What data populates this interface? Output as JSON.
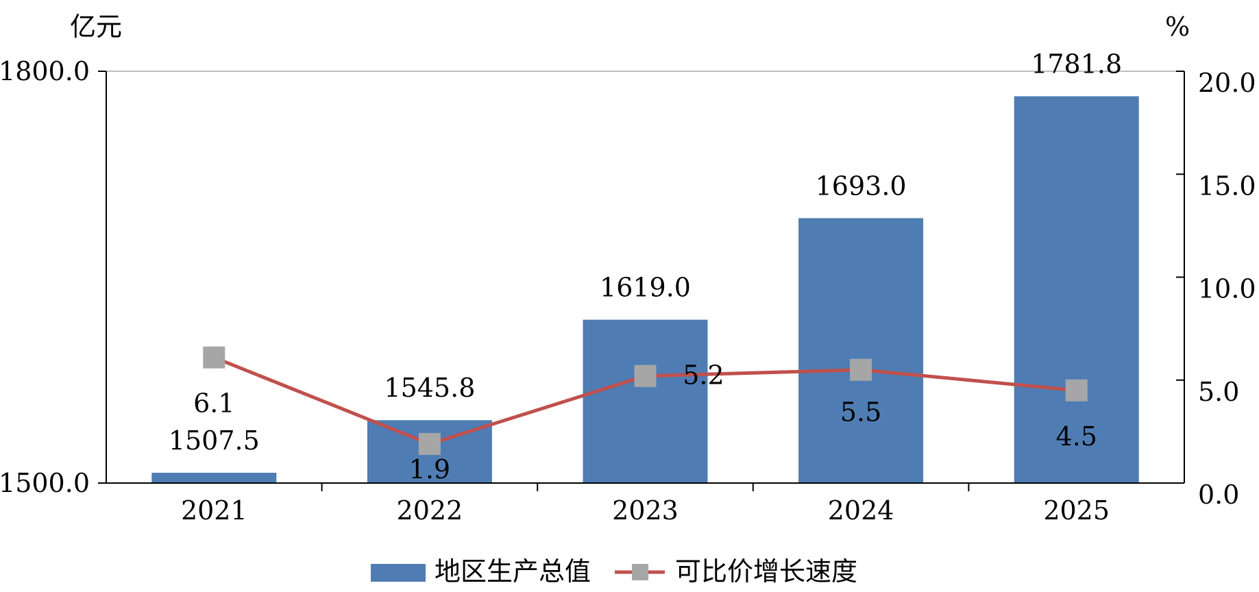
{
  "chart_data": {
    "type": "bar",
    "categories": [
      "2021",
      "2022",
      "2023",
      "2024",
      "2025"
    ],
    "series": [
      {
        "name": "地区生产总值",
        "type": "bar",
        "axis": "left",
        "values": [
          1507.5,
          1545.8,
          1619.0,
          1693.0,
          1781.8
        ],
        "labels": [
          "1507.5",
          "1545.8",
          "1619.0",
          "1693.0",
          "1781.8"
        ]
      },
      {
        "name": "可比价增长速度",
        "type": "line",
        "axis": "right",
        "values": [
          6.1,
          1.9,
          5.2,
          5.5,
          4.5
        ],
        "labels": [
          "6.1",
          "1.9",
          "5.2",
          "5.5",
          "4.5"
        ]
      }
    ],
    "left_axis": {
      "unit": "亿元",
      "range": [
        1500,
        1800
      ],
      "ticks": [
        "1500.0",
        "1800.0"
      ]
    },
    "right_axis": {
      "unit": "%",
      "range": [
        0,
        20
      ],
      "ticks": [
        "0.0",
        "5.0",
        "10.0",
        "15.0",
        "20.0"
      ]
    },
    "legend": "bottom",
    "grid": false,
    "colors": {
      "bar": "#4f7db3",
      "line": "#c0504d",
      "marker": "#a6a6a6"
    }
  }
}
